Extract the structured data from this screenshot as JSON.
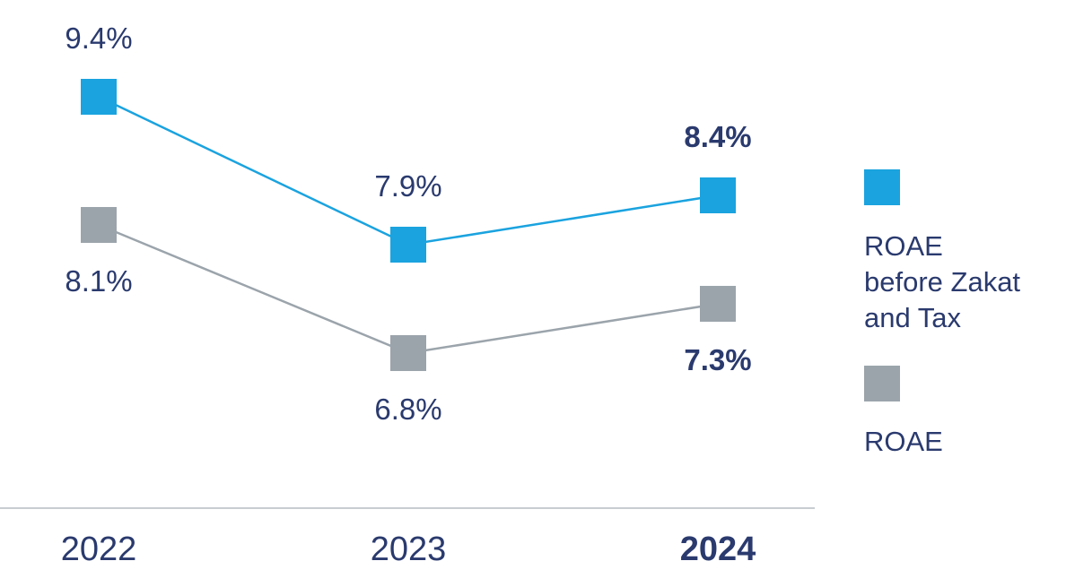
{
  "chart_data": {
    "type": "line",
    "categories": [
      "2022",
      "2023",
      "2024"
    ],
    "category_emphasis": [
      false,
      false,
      true
    ],
    "series": [
      {
        "name": "ROAE before Zakat and Tax",
        "values": [
          9.4,
          7.9,
          8.4
        ],
        "labels": [
          "9.4%",
          "7.9%",
          "8.4%"
        ],
        "color": "#1aa3df"
      },
      {
        "name": "ROAE",
        "values": [
          8.1,
          6.8,
          7.3
        ],
        "labels": [
          "8.1%",
          "6.8%",
          "7.3%"
        ],
        "color": "#9ba4ab"
      }
    ],
    "legend": {
      "placement": "right",
      "items": [
        {
          "lines": [
            "ROAE",
            "before Zakat",
            "and Tax"
          ],
          "color": "#1aa3df"
        },
        {
          "lines": [
            "ROAE"
          ],
          "color": "#9ba4ab"
        }
      ]
    },
    "grid": false
  },
  "colors": {
    "text": "#2a3a6e",
    "axis": "#c8cdd2"
  }
}
